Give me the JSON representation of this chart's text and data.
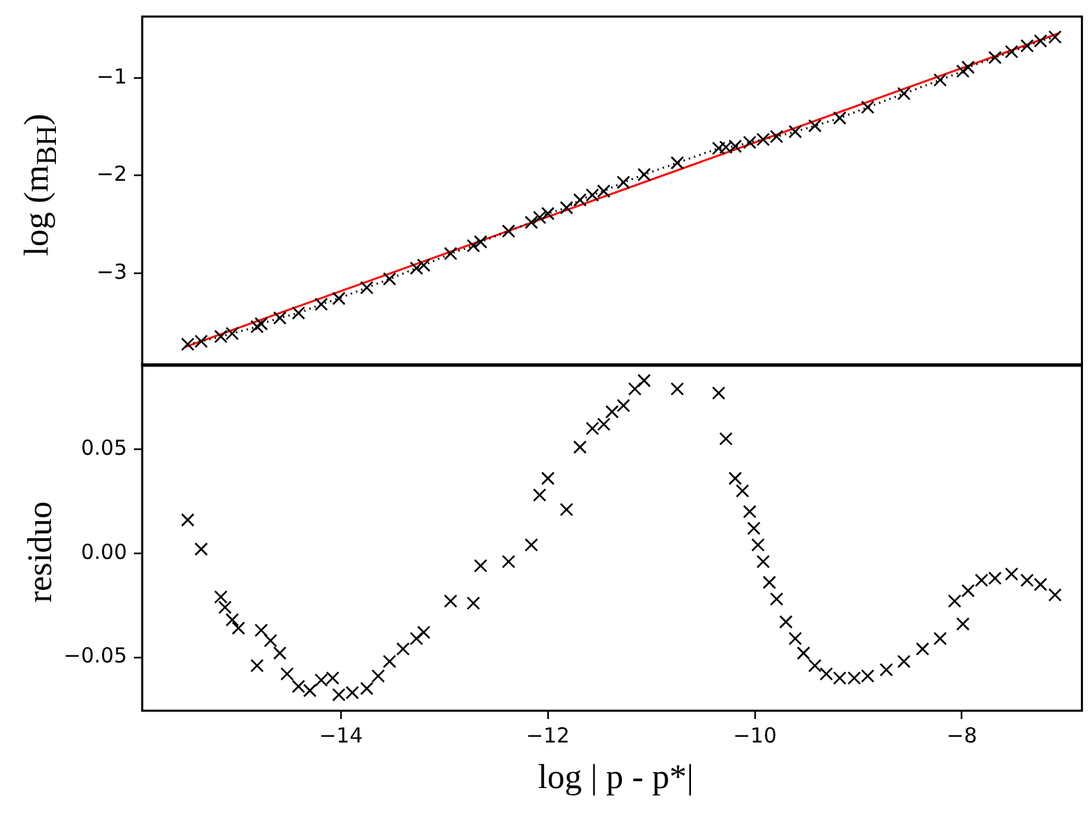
{
  "chart_data": [
    {
      "type": "line",
      "ylabel": "log (m$_{BH}$)",
      "xlim": [
        -15.92,
        -6.84
      ],
      "ylim": [
        -3.95,
        -0.37
      ],
      "yticks": [
        {
          "value": -3,
          "label": "−3"
        },
        {
          "value": -2,
          "label": "−2"
        },
        {
          "value": -1,
          "label": "−1"
        }
      ],
      "tick_labels": "y",
      "grid": false,
      "series": [
        {
          "color": "#000000",
          "marker": "cross",
          "line_style": "dotted",
          "x": [
            -15.48,
            -15.35,
            -15.16,
            -15.05,
            -14.81,
            -14.77,
            -14.59,
            -14.41,
            -14.19,
            -14.02,
            -13.75,
            -13.53,
            -13.27,
            -13.2,
            -12.94,
            -12.72,
            -12.65,
            -12.38,
            -12.16,
            -12.08,
            -12.0,
            -11.82,
            -11.69,
            -11.57,
            -11.46,
            -11.27,
            -11.07,
            -10.75,
            -10.35,
            -10.28,
            -10.19,
            -10.05,
            -9.92,
            -9.79,
            -9.61,
            -9.42,
            -9.18,
            -8.91,
            -8.56,
            -8.21,
            -7.99,
            -7.94,
            -7.68,
            -7.52,
            -7.37,
            -7.24,
            -7.1
          ],
          "values": [
            -3.73,
            -3.7,
            -3.65,
            -3.62,
            -3.55,
            -3.52,
            -3.46,
            -3.41,
            -3.32,
            -3.26,
            -3.15,
            -3.06,
            -2.95,
            -2.92,
            -2.8,
            -2.72,
            -2.68,
            -2.57,
            -2.48,
            -2.43,
            -2.39,
            -2.33,
            -2.25,
            -2.2,
            -2.16,
            -2.07,
            -1.99,
            -1.87,
            -1.72,
            -1.71,
            -1.7,
            -1.66,
            -1.63,
            -1.6,
            -1.55,
            -1.49,
            -1.41,
            -1.3,
            -1.16,
            -1.02,
            -0.93,
            -0.89,
            -0.79,
            -0.73,
            -0.67,
            -0.62,
            -0.58
          ]
        },
        {
          "color": "#ff0000",
          "marker": "none",
          "line_style": "solid",
          "x": [
            -15.51,
            -7.06
          ],
          "values": [
            -3.76,
            -0.54
          ]
        }
      ]
    },
    {
      "type": "scatter",
      "xlabel": "log | p - p*|",
      "ylabel": "residuo",
      "xlim": [
        -15.92,
        -6.84
      ],
      "xticks": [
        {
          "value": -14,
          "label": "−14"
        },
        {
          "value": -12,
          "label": "−12"
        },
        {
          "value": -10,
          "label": "−10"
        },
        {
          "value": -8,
          "label": "−8"
        }
      ],
      "ylim": [
        -0.0757,
        0.0908
      ],
      "yticks": [
        {
          "value": -0.05,
          "label": "−0.05"
        },
        {
          "value": 0,
          "label": "0.00"
        },
        {
          "value": 0.05,
          "label": "0.05"
        }
      ],
      "grid": false,
      "series": [
        {
          "color": "#000000",
          "marker": "cross",
          "x": [
            -15.48,
            -15.35,
            -15.16,
            -15.12,
            -15.05,
            -14.99,
            -14.81,
            -14.77,
            -14.68,
            -14.59,
            -14.52,
            -14.41,
            -14.3,
            -14.19,
            -14.08,
            -14.02,
            -13.89,
            -13.75,
            -13.64,
            -13.53,
            -13.4,
            -13.27,
            -13.2,
            -12.94,
            -12.72,
            -12.65,
            -12.38,
            -12.16,
            -12.08,
            -12.0,
            -11.82,
            -11.69,
            -11.57,
            -11.46,
            -11.38,
            -11.27,
            -11.16,
            -11.07,
            -10.75,
            -10.35,
            -10.28,
            -10.19,
            -10.12,
            -10.05,
            -10.01,
            -9.97,
            -9.92,
            -9.86,
            -9.79,
            -9.7,
            -9.61,
            -9.53,
            -9.42,
            -9.31,
            -9.18,
            -9.04,
            -8.91,
            -8.73,
            -8.56,
            -8.38,
            -8.21,
            -7.99,
            -8.07,
            -7.94,
            -7.81,
            -7.68,
            -7.52,
            -7.37,
            -7.24,
            -7.1
          ],
          "values": [
            0.016,
            0.002,
            -0.021,
            -0.026,
            -0.032,
            -0.036,
            -0.054,
            -0.037,
            -0.042,
            -0.048,
            -0.058,
            -0.064,
            -0.066,
            -0.061,
            -0.06,
            -0.068,
            -0.067,
            -0.065,
            -0.059,
            -0.052,
            -0.046,
            -0.041,
            -0.038,
            -0.023,
            -0.024,
            -0.006,
            -0.004,
            0.004,
            0.028,
            0.036,
            0.021,
            0.051,
            0.06,
            0.062,
            0.068,
            0.071,
            0.079,
            0.083,
            0.079,
            0.077,
            0.055,
            0.036,
            0.03,
            0.02,
            0.012,
            0.004,
            -0.004,
            -0.014,
            -0.022,
            -0.033,
            -0.041,
            -0.048,
            -0.054,
            -0.058,
            -0.06,
            -0.06,
            -0.059,
            -0.056,
            -0.052,
            -0.046,
            -0.041,
            -0.034,
            -0.023,
            -0.018,
            -0.013,
            -0.012,
            -0.01,
            -0.013,
            -0.015,
            -0.02
          ]
        }
      ]
    }
  ]
}
